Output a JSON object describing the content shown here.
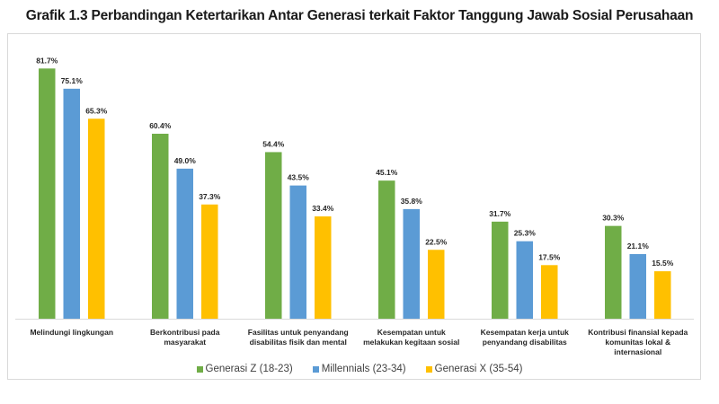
{
  "chart_data": {
    "type": "bar",
    "title": "Grafik 1.3 Perbandingan Ketertarikan Antar Generasi terkait Faktor Tanggung Jawab Sosial Perusahaan",
    "xlabel": "",
    "ylabel": "",
    "ylim": [
      0,
      90
    ],
    "grid": false,
    "legend_position": "bottom",
    "value_suffix": "%",
    "categories": [
      "Melindungi lingkungan",
      "Berkontribusi pada masyarakat",
      "Fasilitas untuk penyandang disabilitas fisik dan mental",
      "Kesempatan untuk melakukan kegitaan sosial",
      "Kesempatan kerja untuk penyandang disabilitas",
      "Kontribusi finansial kepada komunitas lokal & internasional"
    ],
    "category_lines": [
      [
        "Melindungi lingkungan"
      ],
      [
        "Berkontribusi pada",
        "masyarakat"
      ],
      [
        "Fasilitas untuk penyandang",
        "disabilitas fisik dan mental"
      ],
      [
        "Kesempatan untuk",
        "melakukan kegitaan sosial"
      ],
      [
        "Kesempatan kerja untuk",
        "penyandang disabilitas"
      ],
      [
        "Kontribusi finansial kepada",
        "komunitas lokal &",
        "internasional"
      ]
    ],
    "series": [
      {
        "name": "Generasi Z (18-23)",
        "color": "#70ad47",
        "values": [
          81.7,
          60.4,
          54.4,
          45.1,
          31.7,
          30.3
        ]
      },
      {
        "name": "Millennials (23-34)",
        "color": "#5b9bd5",
        "values": [
          75.1,
          49.0,
          43.5,
          35.8,
          25.3,
          21.1
        ]
      },
      {
        "name": "Generasi X (35-54)",
        "color": "#ffc000",
        "values": [
          65.3,
          37.3,
          33.4,
          22.5,
          17.5,
          15.5
        ]
      }
    ]
  }
}
